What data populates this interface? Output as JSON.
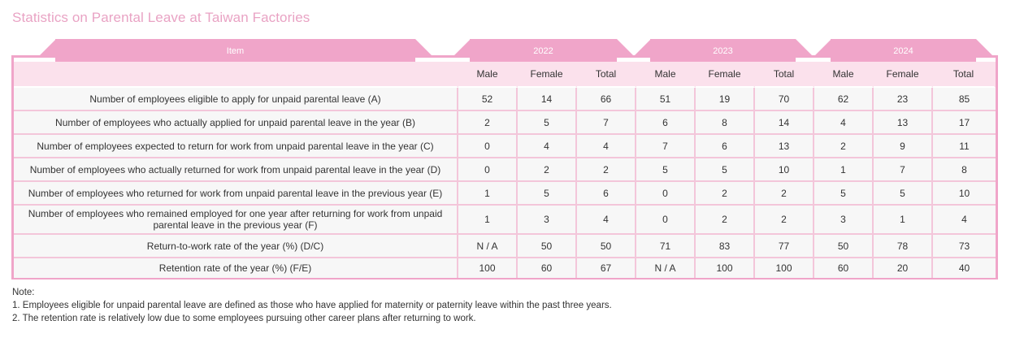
{
  "title": "Statistics on Parental Leave at Taiwan Factories",
  "header": {
    "item_label": "Item",
    "years": [
      "2022",
      "2023",
      "2024"
    ],
    "sub_columns": [
      "Male",
      "Female",
      "Total"
    ]
  },
  "rows": [
    {
      "label": "Number of employees eligible to apply for unpaid parental leave (A)",
      "values": [
        "52",
        "14",
        "66",
        "51",
        "19",
        "70",
        "62",
        "23",
        "85"
      ]
    },
    {
      "label": "Number of employees who actually applied for unpaid parental leave in the year (B)",
      "values": [
        "2",
        "5",
        "7",
        "6",
        "8",
        "14",
        "4",
        "13",
        "17"
      ]
    },
    {
      "label": "Number of employees expected to return for work from unpaid parental leave in the year (C)",
      "values": [
        "0",
        "4",
        "4",
        "7",
        "6",
        "13",
        "2",
        "9",
        "11"
      ]
    },
    {
      "label": "Number of employees who actually returned for work from unpaid parental leave in the year (D)",
      "values": [
        "0",
        "2",
        "2",
        "5",
        "5",
        "10",
        "1",
        "7",
        "8"
      ]
    },
    {
      "label": "Number of employees who returned for work from unpaid parental leave in the previous year (E)",
      "values": [
        "1",
        "5",
        "6",
        "0",
        "2",
        "2",
        "5",
        "5",
        "10"
      ]
    },
    {
      "label": "Number of employees who remained employed for one year after returning for work from unpaid parental leave in the previous year (F)",
      "values": [
        "1",
        "3",
        "4",
        "0",
        "2",
        "2",
        "3",
        "1",
        "4"
      ]
    },
    {
      "label": "Return-to-work rate of the year (%) (D/C)",
      "values": [
        "N / A",
        "50",
        "50",
        "71",
        "83",
        "77",
        "50",
        "78",
        "73"
      ]
    },
    {
      "label": "Retention rate of the year (%) (F/E)",
      "values": [
        "100",
        "60",
        "67",
        "N / A",
        "100",
        "100",
        "60",
        "20",
        "40"
      ]
    }
  ],
  "notes": {
    "heading": "Note:",
    "items": [
      "1. Employees eligible for unpaid parental leave are defined as those who have applied for maternity or paternity leave within the past three years.",
      "2. The retention rate is relatively low due to some employees pursuing other career plans after returning to work."
    ]
  }
}
